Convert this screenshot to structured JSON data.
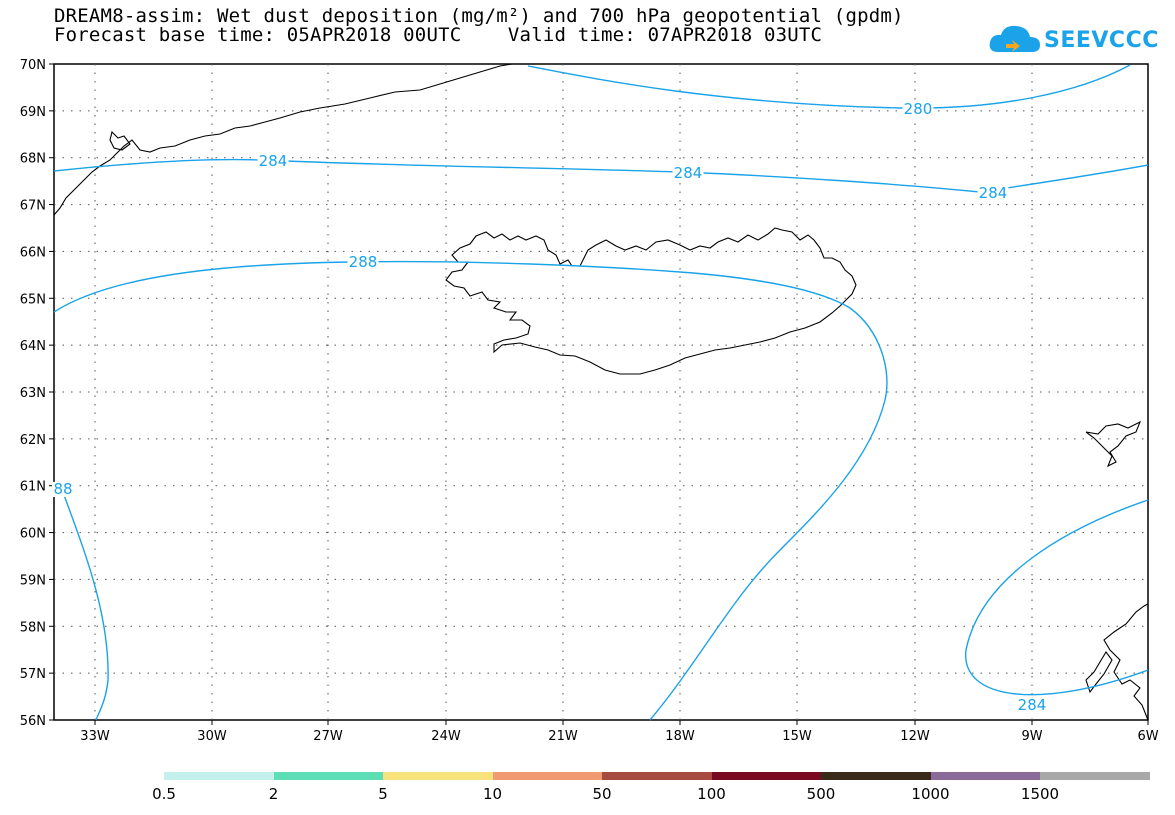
{
  "title_line1": "DREAM8-assim: Wet dust deposition (mg/m²) and 700 hPa geopotential (gpdm)",
  "title_line2": "Forecast base time: 05APR2018 00UTC    Valid time: 07APR2018 03UTC",
  "logo_text": "SEEVCCC",
  "lat_labels": [
    "70N",
    "69N",
    "68N",
    "67N",
    "66N",
    "65N",
    "64N",
    "63N",
    "62N",
    "61N",
    "60N",
    "59N",
    "58N",
    "57N",
    "56N"
  ],
  "lon_labels": [
    "33W",
    "30W",
    "27W",
    "24W",
    "21W",
    "18W",
    "15W",
    "12W",
    "9W",
    "6W"
  ],
  "contour_labels": [
    "280",
    "284",
    "284",
    "284",
    "288",
    "284",
    "88"
  ],
  "colorbar": {
    "labels": [
      "0.5",
      "2",
      "5",
      "10",
      "50",
      "100",
      "500",
      "1000",
      "1500"
    ],
    "colors": [
      "#c3f0ec",
      "#5ddfb5",
      "#f7e37a",
      "#f09a72",
      "#a64a42",
      "#7a0a24",
      "#3a2a1a",
      "#8a6a98",
      "#a8a8a8"
    ]
  },
  "colors": {
    "contour": "#1aa3e8",
    "coast": "#000000",
    "grid": "#555555"
  }
}
